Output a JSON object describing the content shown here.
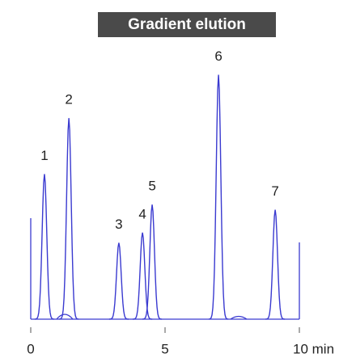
{
  "chart_data": {
    "type": "line",
    "title": "Gradient elution",
    "peaks": {
      "labels": [
        "1",
        "2",
        "3",
        "4",
        "5",
        "6",
        "7"
      ],
      "x": [
        0.51,
        1.42,
        3.28,
        4.16,
        4.52,
        6.99,
        9.1
      ],
      "values": [
        57,
        79,
        30,
        34,
        45,
        96,
        43
      ]
    },
    "color": "#3a3ad0",
    "xlim": [
      0,
      10
    ],
    "ylim": [
      0,
      100
    ],
    "xticks": [
      0,
      5,
      {
        "value": 10,
        "label": "10 min"
      }
    ]
  }
}
